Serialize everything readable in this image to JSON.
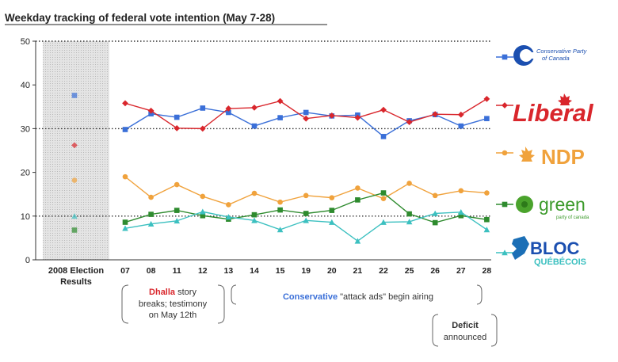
{
  "chart_data": {
    "type": "line",
    "title": "Weekday tracking of federal vote intention (May 7-28)",
    "ylim": [
      0,
      50
    ],
    "yticks": [
      0,
      10,
      20,
      30,
      40,
      50
    ],
    "categories": [
      "07",
      "08",
      "11",
      "12",
      "13",
      "14",
      "15",
      "19",
      "20",
      "21",
      "22",
      "25",
      "26",
      "27",
      "28"
    ],
    "election_label_line1": "2008 Election",
    "election_label_line2": "Results",
    "series": [
      {
        "name": "Conservative Party of Canada",
        "color": "#3a6fd8",
        "marker": "square",
        "election": 37.6,
        "values": [
          29.8,
          33.4,
          32.6,
          34.7,
          33.7,
          30.6,
          32.5,
          33.7,
          32.9,
          33.1,
          28.2,
          31.8,
          33.2,
          30.6,
          32.3
        ]
      },
      {
        "name": "Liberal",
        "color": "#d9262c",
        "marker": "diamond",
        "election": 26.2,
        "values": [
          35.8,
          34.1,
          30.1,
          30.0,
          34.6,
          34.8,
          36.3,
          32.3,
          33.0,
          32.5,
          34.3,
          31.5,
          33.3,
          33.2,
          36.8
        ]
      },
      {
        "name": "NDP",
        "color": "#f0a23c",
        "marker": "circle",
        "election": 18.2,
        "values": [
          19.0,
          14.3,
          17.2,
          14.5,
          12.6,
          15.2,
          13.2,
          14.7,
          14.2,
          16.4,
          14.0,
          17.5,
          14.7,
          15.8,
          15.3
        ]
      },
      {
        "name": "green",
        "color": "#2e8b2e",
        "marker": "square",
        "election": 6.8,
        "values": [
          8.6,
          10.4,
          11.3,
          10.1,
          9.3,
          10.3,
          11.4,
          10.6,
          11.3,
          13.7,
          15.3,
          10.5,
          8.5,
          10.1,
          9.2
        ]
      },
      {
        "name": "BLOC QUÉBÉCOIS",
        "color": "#3cc0c0",
        "marker": "triangle",
        "election": 10.0,
        "values": [
          7.2,
          8.2,
          8.9,
          11.0,
          9.8,
          9.0,
          6.9,
          9.0,
          8.6,
          4.3,
          8.6,
          8.7,
          10.6,
          10.9,
          6.9
        ]
      }
    ],
    "grid": "dotted horizontal at 10, 30, 50"
  },
  "legend": {
    "conservative_line1": "Conservative Party",
    "conservative_line2": "of Canada",
    "liberal": "Liberal",
    "ndp": "NDP",
    "green": "green",
    "green_sub": "party of canada",
    "bloc_line1": "BLOC",
    "bloc_line2": "QUÉBÉCOIS"
  },
  "annotations": {
    "dhalla_highlight": "Dhalla",
    "dhalla_rest": " story",
    "dhalla_line2": "breaks; testimony",
    "dhalla_line3": "on May 12th",
    "attack_highlight": "Conservative",
    "attack_rest": " \"attack ads\" begin airing",
    "deficit_line1": "Deficit",
    "deficit_line2": "announced"
  },
  "colors": {
    "election_bg": "#d9d9d9",
    "dhalla_red": "#d9262c",
    "conservative_blue": "#3a6fd8"
  }
}
